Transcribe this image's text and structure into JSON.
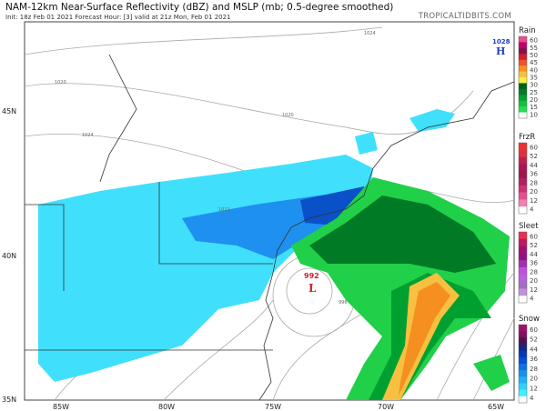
{
  "header": {
    "title": "NAM-12km Near-Surface Reflectivity (dBZ) and MSLP (mb; 0.5-degree smoothed)",
    "subtitle": "Init: 18z Feb 01 2021   Forecast Hour: [3]   valid at 21z Mon, Feb 01 2021",
    "brand": "TROPICALTIDBITS.COM"
  },
  "map": {
    "lat_labels": [
      "45N",
      "40N",
      "35N"
    ],
    "lon_labels": [
      "85W",
      "80W",
      "75W",
      "70W",
      "65W"
    ],
    "pressure_centers": [
      {
        "type": "H",
        "value": "1028",
        "color": "#1f3fbf"
      },
      {
        "type": "L",
        "value": "992",
        "color": "#d0202a"
      }
    ],
    "isobar_labels": [
      "1024",
      "1020",
      "1020",
      "1012",
      "996",
      "1024"
    ]
  },
  "legend": [
    {
      "name": "Rain",
      "ticks": [
        "60",
        "55",
        "50",
        "45",
        "40",
        "35",
        "30",
        "25",
        "20",
        "15",
        "10"
      ],
      "colors": [
        "#f04a8a",
        "#c0006a",
        "#8a0f4f",
        "#d0202a",
        "#f05030",
        "#f59020",
        "#f8c040",
        "#f8f040",
        "#00601a",
        "#007a25",
        "#00a030",
        "#10c040",
        "#20e050",
        "#ffffff"
      ]
    },
    {
      "name": "FrzR",
      "ticks": [
        "60",
        "52",
        "44",
        "36",
        "28",
        "20",
        "12",
        "4"
      ],
      "colors": [
        "#f03030",
        "#e03040",
        "#c02050",
        "#a81850",
        "#9a1848",
        "#b02060",
        "#d03070",
        "#e05090",
        "#f080b0",
        "#ffffff"
      ]
    },
    {
      "name": "Sleet",
      "ticks": [
        "60",
        "52",
        "44",
        "36",
        "28",
        "20",
        "12",
        "4"
      ],
      "colors": [
        "#e83050",
        "#c01860",
        "#a01070",
        "#901080",
        "#a030b0",
        "#c050e0",
        "#b860e0",
        "#a070c0",
        "#c090d8",
        "#ffffff"
      ]
    },
    {
      "name": "Snow",
      "ticks": [
        "60",
        "52",
        "44",
        "36",
        "28",
        "20",
        "12",
        "4"
      ],
      "colors": [
        "#a0106a",
        "#801060",
        "#501050",
        "#102880",
        "#0838b0",
        "#0050d8",
        "#1070e8",
        "#1890f0",
        "#20b0f8",
        "#30d0fc",
        "#40f0ff",
        "#ffffff"
      ]
    }
  ]
}
